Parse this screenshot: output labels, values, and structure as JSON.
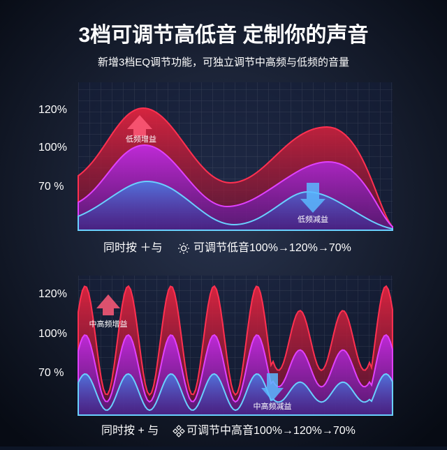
{
  "header": {
    "title": "3档可调节高低音 定制你的声音",
    "subtitle": "新增3档EQ调节功能，可独立调节中高频与低频的音量"
  },
  "panels": [
    {
      "levels": [
        "120%",
        "100%",
        "70 %"
      ],
      "boost_label": "低频增益",
      "cut_label": "低频减益",
      "caption_prefix": "同时按 ＋与",
      "caption_suffix": "可调节低音100%→120%→70%"
    },
    {
      "levels": [
        "120%",
        "100%",
        "70 %"
      ],
      "boost_label": "中高频增益",
      "cut_label": "中高频减益",
      "caption_prefix": "同时按 + 与",
      "caption_suffix": "可调节中高音100%→120%→70%"
    }
  ]
}
